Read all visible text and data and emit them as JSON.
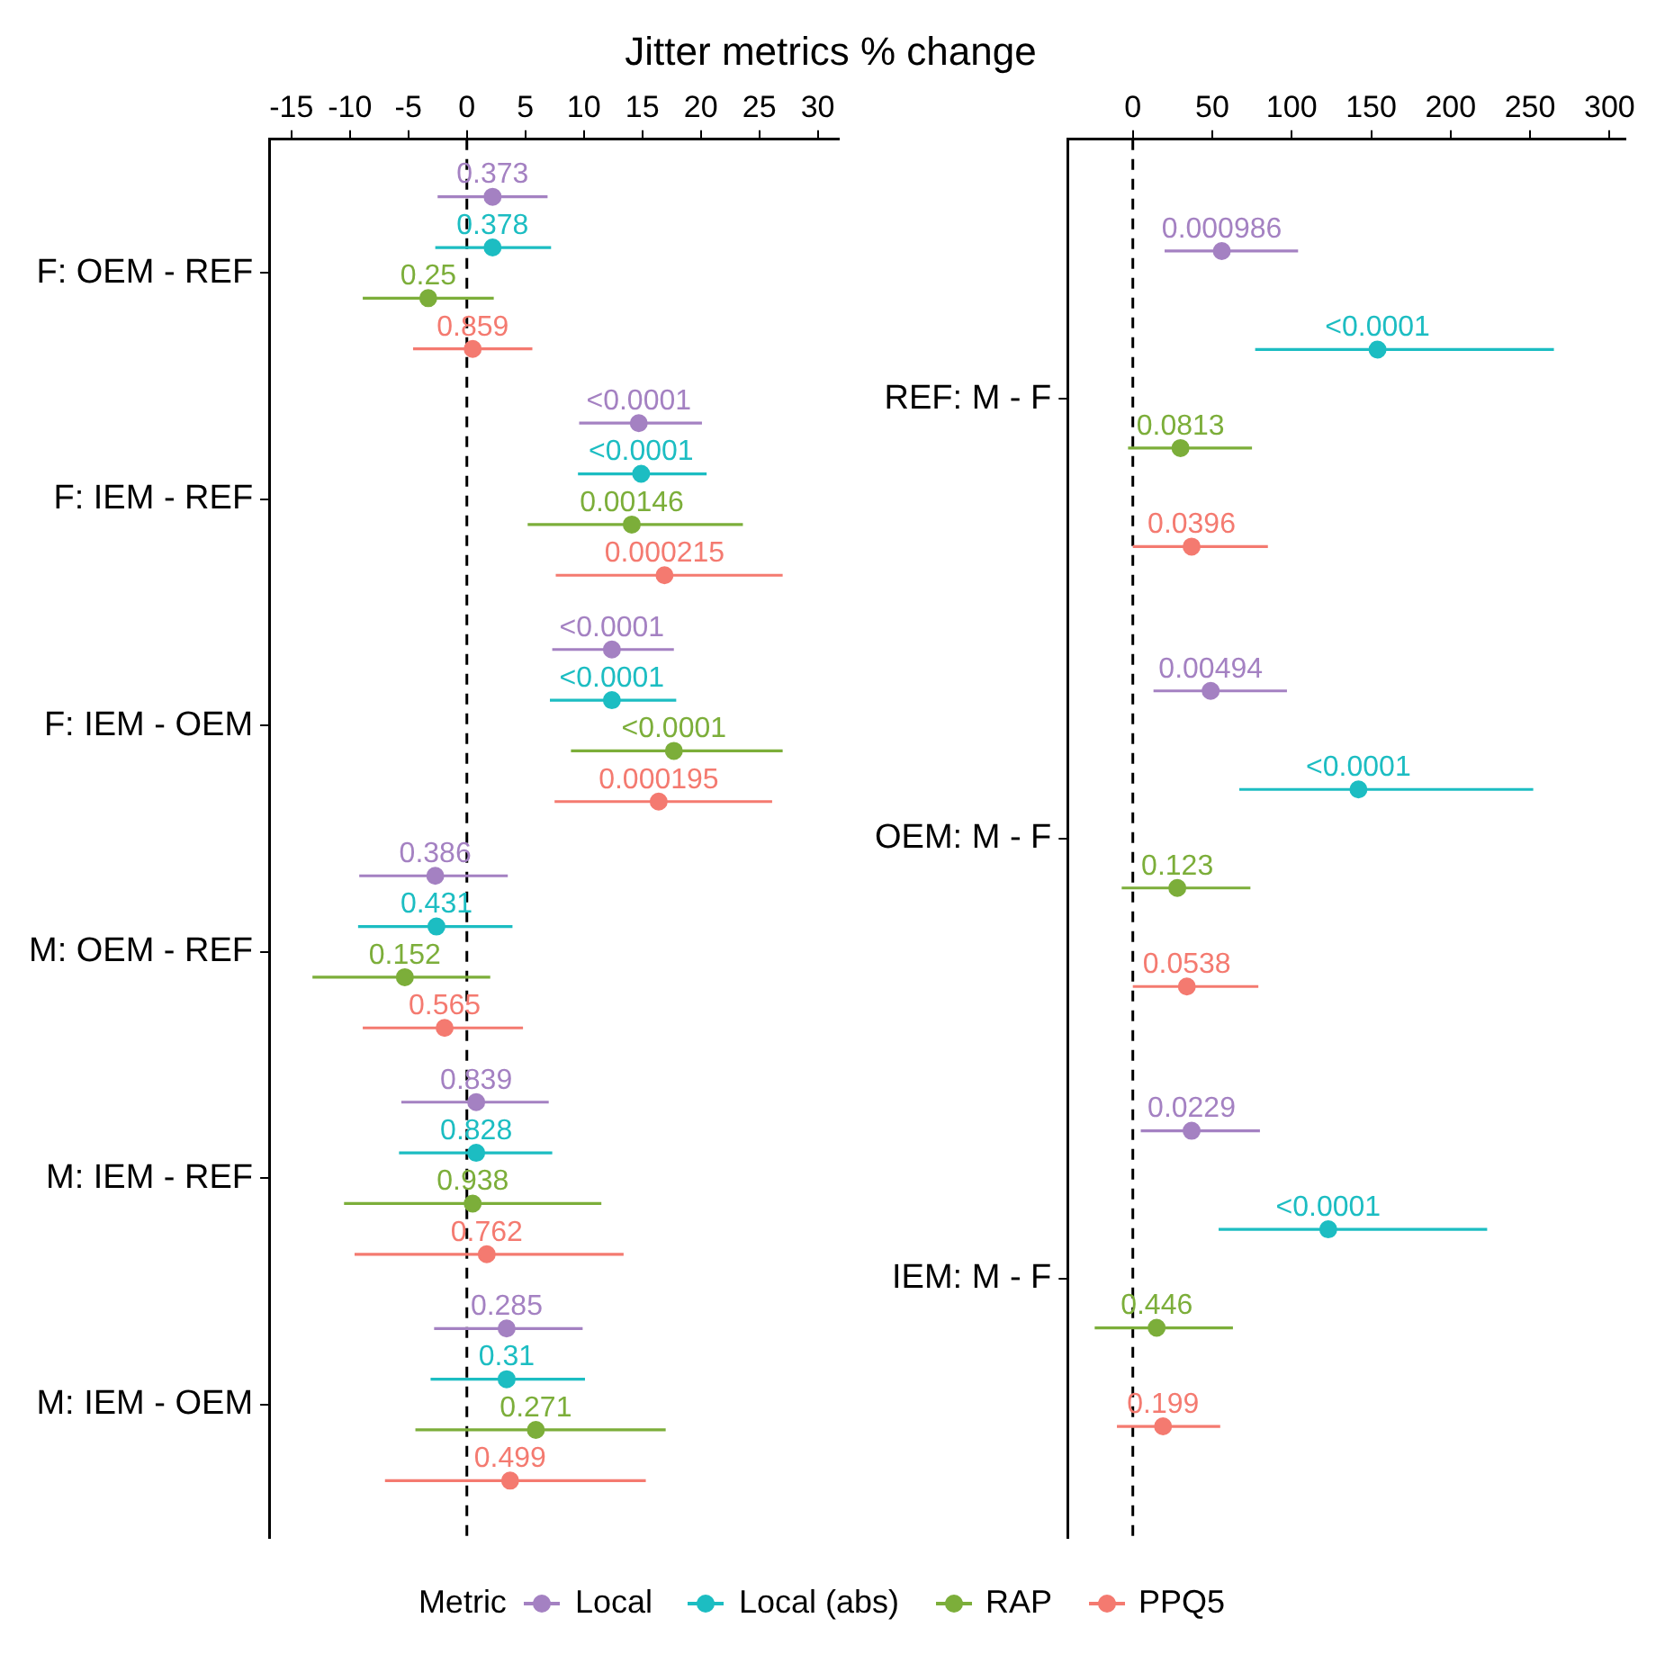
{
  "chart_data": [
    {
      "type": "scatter",
      "orientation": "horizontal",
      "title": "Jitter metrics % change",
      "legend_title": "Metric",
      "legend": "bottom",
      "grid": false,
      "marker": "circle",
      "categories": [
        "F: OEM - REF",
        "F: IEM - REF",
        "F: IEM - OEM",
        "M: OEM - REF",
        "M: IEM - REF",
        "M: IEM - OEM"
      ],
      "xlim": [
        -16.9,
        31.8
      ],
      "xticks": [
        -15,
        -10,
        -5,
        0,
        5,
        10,
        15,
        20,
        25,
        30
      ],
      "ref_lines": [
        {
          "axis": "x",
          "value": 0,
          "color": "#000000",
          "line_style": "dashed"
        }
      ],
      "series": [
        {
          "name": "Local",
          "color": "#a481c2",
          "values": [
            2.2,
            14.7,
            12.4,
            -2.7,
            0.8,
            3.4
          ],
          "errors": [
            [
              -2.5,
              6.9
            ],
            [
              9.6,
              20.1
            ],
            [
              7.3,
              17.7
            ],
            [
              -9.2,
              3.5
            ],
            [
              -5.6,
              7.0
            ],
            [
              -2.8,
              9.9
            ]
          ]
        },
        {
          "name": "Local (abs)",
          "color": "#1cbdc2",
          "values": [
            2.2,
            14.9,
            12.4,
            -2.6,
            0.8,
            3.4
          ],
          "errors": [
            [
              -2.7,
              7.2
            ],
            [
              9.5,
              20.5
            ],
            [
              7.1,
              17.9
            ],
            [
              -9.3,
              3.9
            ],
            [
              -5.8,
              7.3
            ],
            [
              -3.1,
              10.1
            ]
          ]
        },
        {
          "name": "RAP",
          "color": "#7cae3a",
          "values": [
            -3.3,
            14.1,
            17.7,
            -5.3,
            0.5,
            5.9
          ],
          "errors": [
            [
              -8.9,
              2.3
            ],
            [
              5.2,
              23.6
            ],
            [
              8.9,
              27.0
            ],
            [
              -13.2,
              2.0
            ],
            [
              -10.5,
              11.5
            ],
            [
              -4.4,
              17.0
            ]
          ]
        },
        {
          "name": "PPQ5",
          "color": "#f47a70",
          "values": [
            0.5,
            16.9,
            16.4,
            -1.9,
            1.7,
            3.7
          ],
          "errors": [
            [
              -4.6,
              5.6
            ],
            [
              7.6,
              27.0
            ],
            [
              7.5,
              26.1
            ],
            [
              -8.9,
              4.8
            ],
            [
              -9.6,
              13.4
            ],
            [
              -7.0,
              15.3
            ]
          ]
        }
      ],
      "annotations": [
        "0.373",
        "0.378",
        "0.25",
        "0.859",
        "<0.0001",
        "<0.0001",
        "0.00146",
        "0.000215",
        "<0.0001",
        "<0.0001",
        "<0.0001",
        "0.000195",
        "0.386",
        "0.431",
        "0.152",
        "0.565",
        "0.839",
        "0.828",
        "0.938",
        "0.762",
        "0.285",
        "0.31",
        "0.271",
        "0.499"
      ]
    },
    {
      "type": "scatter",
      "orientation": "horizontal",
      "grid": false,
      "marker": "circle",
      "categories": [
        "REF: M - F",
        "OEM: M - F",
        "IEM: M - F"
      ],
      "xlim": [
        -41,
        310
      ],
      "xticks": [
        0,
        50,
        100,
        150,
        200,
        250,
        300
      ],
      "ref_lines": [
        {
          "axis": "x",
          "value": 0,
          "color": "#000000",
          "line_style": "dashed"
        }
      ],
      "series": [
        {
          "color": "#a481c2",
          "values": [
            56,
            49,
            37
          ],
          "errors": [
            [
              20,
              104
            ],
            [
              13,
              97
            ],
            [
              5,
              80
            ]
          ]
        },
        {
          "color": "#1cbdc2",
          "values": [
            154,
            142,
            123
          ],
          "errors": [
            [
              77,
              265
            ],
            [
              67,
              252
            ],
            [
              54,
              223
            ]
          ]
        },
        {
          "color": "#7cae3a",
          "values": [
            30,
            28,
            15
          ],
          "errors": [
            [
              -3,
              75
            ],
            [
              -7,
              74
            ],
            [
              -24,
              63
            ]
          ]
        },
        {
          "color": "#f47a70",
          "values": [
            37,
            34,
            19
          ],
          "errors": [
            [
              0,
              85
            ],
            [
              0,
              79
            ],
            [
              -10,
              55
            ]
          ]
        }
      ],
      "annotations": [
        "0.000986",
        "<0.0001",
        "0.0813",
        "0.0396",
        "0.00494",
        "<0.0001",
        "0.123",
        "0.0538",
        "0.0229",
        "<0.0001",
        "0.446",
        "0.199"
      ]
    }
  ]
}
